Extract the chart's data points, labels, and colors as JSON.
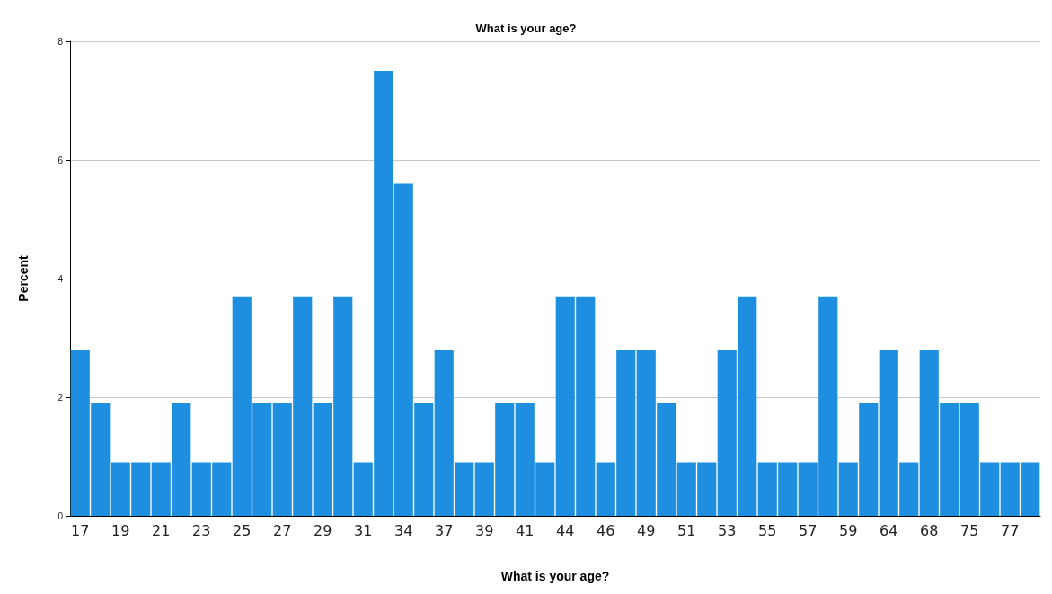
{
  "chart_data": {
    "type": "bar",
    "title": "What is your age?",
    "xlabel": "What is your age?",
    "ylabel": "Percent",
    "categories": [
      "17",
      null,
      "19",
      null,
      "21",
      null,
      "23",
      null,
      "25",
      null,
      "27",
      null,
      "29",
      null,
      "31",
      null,
      "34",
      null,
      "37",
      null,
      "39",
      null,
      "41",
      null,
      "44",
      null,
      "46",
      null,
      "49",
      null,
      "51",
      null,
      "53",
      null,
      "55",
      null,
      "57",
      null,
      "59",
      null,
      "64",
      null,
      "68",
      null,
      "75",
      null,
      "77",
      null
    ],
    "values": [
      2.8,
      1.9,
      0.9,
      0.9,
      0.9,
      1.9,
      0.9,
      0.9,
      3.7,
      1.9,
      1.9,
      3.7,
      1.9,
      3.7,
      0.9,
      7.5,
      5.6,
      1.9,
      2.8,
      0.9,
      0.9,
      1.9,
      1.9,
      0.9,
      3.7,
      3.7,
      0.9,
      2.8,
      2.8,
      1.9,
      0.9,
      0.9,
      2.8,
      3.7,
      0.9,
      0.9,
      0.9,
      3.7,
      0.9,
      1.9,
      2.8,
      0.9,
      2.8,
      1.9,
      1.9,
      0.9,
      0.9,
      0.9
    ],
    "color": "#1e8fe0",
    "ylim": [
      0,
      8
    ],
    "yticks": [
      0,
      2,
      4,
      6,
      8
    ],
    "grid": "y"
  }
}
